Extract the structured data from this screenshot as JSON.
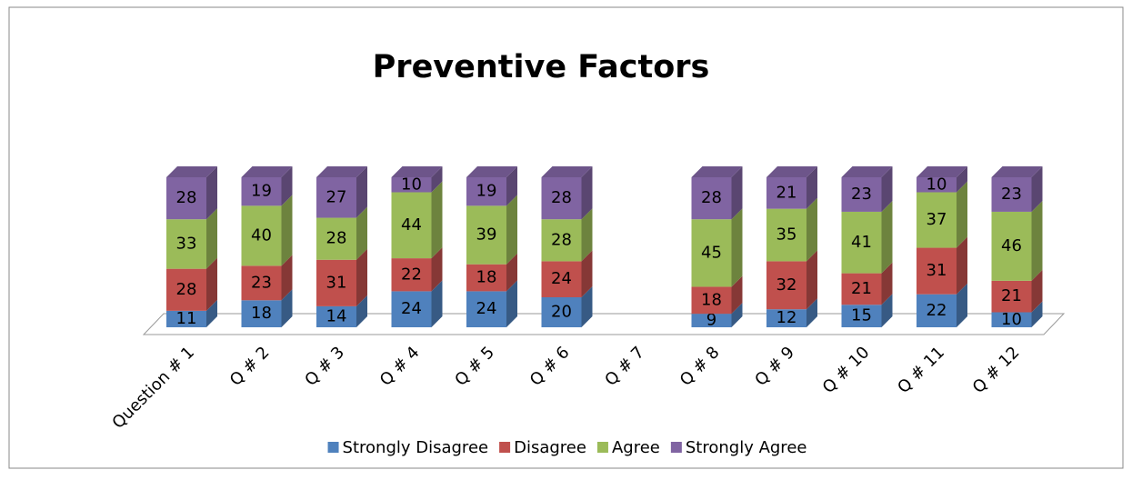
{
  "chart_data": {
    "type": "bar3d-stacked",
    "title": "Preventive Factors",
    "categories": [
      "Question # 1",
      "Q # 2",
      "Q # 3",
      "Q # 4",
      "Q # 5",
      "Q # 6",
      "Q # 7",
      "Q # 8",
      "Q # 9",
      "Q # 10",
      "Q # 11",
      "Q # 12"
    ],
    "series": [
      {
        "name": "Strongly Disagree",
        "color": "#4f81bd",
        "values": [
          11,
          18,
          14,
          24,
          24,
          20,
          null,
          9,
          12,
          15,
          22,
          10
        ]
      },
      {
        "name": "Disagree",
        "color": "#c0504d",
        "values": [
          28,
          23,
          31,
          22,
          18,
          24,
          null,
          18,
          32,
          21,
          31,
          21
        ]
      },
      {
        "name": "Agree",
        "color": "#9bbb59",
        "values": [
          33,
          40,
          28,
          44,
          39,
          28,
          null,
          45,
          35,
          41,
          37,
          46
        ]
      },
      {
        "name": "Strongly Agree",
        "color": "#8064a2",
        "values": [
          28,
          19,
          27,
          10,
          19,
          28,
          null,
          28,
          21,
          23,
          10,
          23
        ]
      }
    ],
    "legend": "bottom"
  }
}
